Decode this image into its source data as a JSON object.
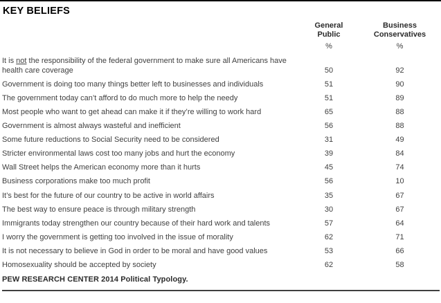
{
  "chart_data": {
    "type": "table",
    "title": "KEY BELIEFS",
    "columns": [
      "General Public",
      "Business Conservatives"
    ],
    "unit": "%",
    "groups": [
      {
        "rows": [
          {
            "pre": "It is ",
            "u": "not",
            "post": " the responsibility of the federal government to make sure all Americans have health care coverage",
            "gp": 50,
            "bc": 92
          },
          {
            "text": "Government is doing too many things better left to businesses and individuals",
            "gp": 51,
            "bc": 90
          },
          {
            "text": "The government today can’t afford to do much more to help the needy",
            "gp": 51,
            "bc": 89
          },
          {
            "text": "Most people who want to get ahead can make it if they’re willing to work hard",
            "gp": 65,
            "bc": 88
          },
          {
            "text": "Government is almost always wasteful and inefficient",
            "gp": 56,
            "bc": 88
          },
          {
            "text": "Some future reductions to Social Security need to be considered",
            "gp": 31,
            "bc": 49
          }
        ]
      },
      {
        "rows": [
          {
            "text": "Stricter environmental laws cost too many jobs and hurt the economy",
            "gp": 39,
            "bc": 84
          },
          {
            "text": "Wall Street helps the American economy more than it hurts",
            "gp": 45,
            "bc": 74
          },
          {
            "text": "Business corporations make too much profit",
            "gp": 56,
            "bc": 10
          }
        ]
      },
      {
        "rows": [
          {
            "text": "It’s best for the future of our country to be active in world affairs",
            "gp": 35,
            "bc": 67
          },
          {
            "text": "The best way to ensure peace is through military strength",
            "gp": 30,
            "bc": 67
          },
          {
            "text": "Immigrants today strengthen our country because of their hard work and talents",
            "gp": 57,
            "bc": 64
          }
        ]
      },
      {
        "rows": [
          {
            "text": "I worry the government is getting too involved in the issue of morality",
            "gp": 62,
            "bc": 71
          },
          {
            "text": "It is not necessary to believe in God in order to be moral and have good values",
            "gp": 53,
            "bc": 66
          },
          {
            "text": "Homosexuality should be accepted by society",
            "gp": 62,
            "bc": 58
          }
        ]
      }
    ],
    "source": "PEW RESEARCH CENTER 2014 Political Typology."
  }
}
